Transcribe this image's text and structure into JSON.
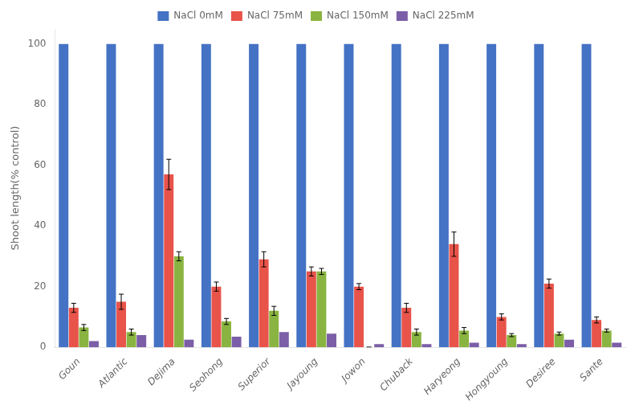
{
  "chart_data": {
    "type": "bar",
    "categories": [
      "Goun",
      "Atlantic",
      "Dejima",
      "Seohong",
      "Superior",
      "Jayoung",
      "Jowon",
      "Chuback",
      "Haryeong",
      "Hongyoung",
      "Desiree",
      "Sante"
    ],
    "series": [
      {
        "name": "NaCl 0mM",
        "color": "#4472C4",
        "values": [
          100,
          100,
          100,
          100,
          100,
          100,
          100,
          100,
          100,
          100,
          100,
          100
        ]
      },
      {
        "name": "NaCl 75mM",
        "color": "#E8534A",
        "values": [
          13,
          15,
          57,
          20,
          29,
          25,
          20,
          13,
          34,
          10,
          21,
          9
        ],
        "errors": [
          1.5,
          2.5,
          5,
          1.5,
          2.5,
          1.5,
          1,
          1.5,
          4,
          1,
          1.5,
          1
        ]
      },
      {
        "name": "NaCl 150mM",
        "color": "#8AB441",
        "values": [
          6.5,
          5,
          30,
          8.5,
          12,
          25,
          0,
          5,
          5.5,
          4,
          4.5,
          5.5
        ],
        "errors": [
          1,
          1,
          1.5,
          1,
          1.5,
          1,
          0,
          1,
          1,
          0.5,
          0.5,
          0.5
        ]
      },
      {
        "name": "NaCl 225mM",
        "color": "#7B5EA7",
        "values": [
          2,
          4,
          2.5,
          3.5,
          5,
          4.5,
          1,
          1,
          1.5,
          1,
          2.5,
          1.5
        ]
      }
    ],
    "ylabel": "Shoot length(% control)",
    "ylim": [
      0,
      105
    ],
    "yticks": [
      0,
      20,
      40,
      60,
      80,
      100
    ],
    "grid": false,
    "legend": "top"
  }
}
